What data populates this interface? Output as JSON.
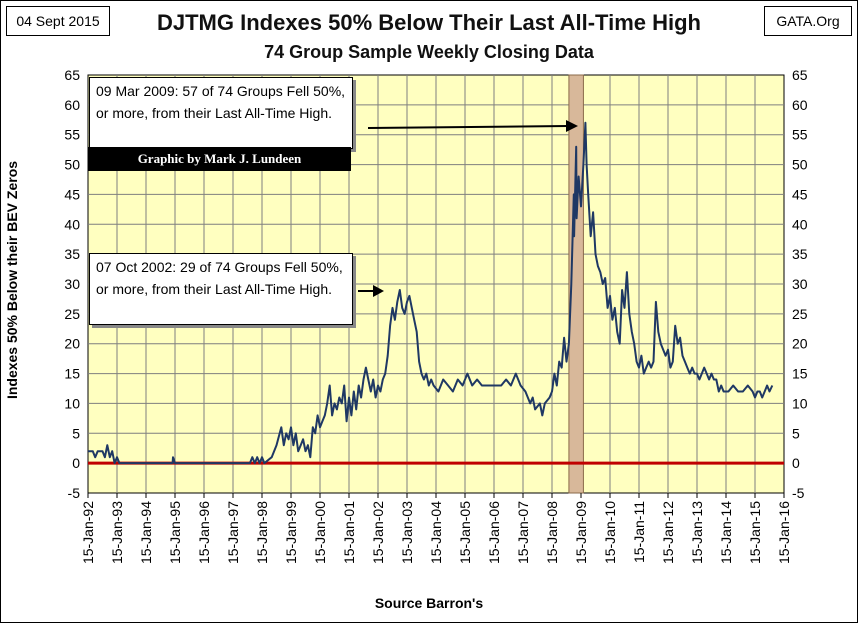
{
  "header": {
    "date_tag": "04 Sept 2015",
    "source_tag": "GATA.Org"
  },
  "colors": {
    "plot_bg": "#ffffc0",
    "line": "#1f3864",
    "zero_line": "#c00000",
    "highlight": "#d8b89a",
    "grid": "#7f7f7f"
  },
  "annotations": {
    "box_2009": "09 Mar 2009: 57 of 74 Groups Fell 50%, or more, from their Last All-Time High.",
    "box_2002": "07 Oct 2002: 29 of 74 Groups Fell 50%, or more, from their Last All-Time High.",
    "credit": "Graphic by Mark J. Lundeen"
  },
  "chart_data": {
    "type": "line",
    "title": "DJTMG Indexes 50% Below Their Last All-Time High",
    "subtitle": "74 Group Sample Weekly Closing Data",
    "ylabel": "Indexes 50% Below their BEV Zeros",
    "xlabel": "Source Barron's",
    "ylim": [
      -5,
      65
    ],
    "yticks": [
      -5,
      0,
      5,
      10,
      15,
      20,
      25,
      30,
      35,
      40,
      45,
      50,
      55,
      60,
      65
    ],
    "xticks": [
      "15-Jan-92",
      "15-Jan-93",
      "15-Jan-94",
      "15-Jan-95",
      "15-Jan-96",
      "15-Jan-97",
      "15-Jan-98",
      "15-Jan-99",
      "15-Jan-00",
      "15-Jan-01",
      "15-Jan-02",
      "15-Jan-03",
      "15-Jan-04",
      "15-Jan-05",
      "15-Jan-06",
      "15-Jan-07",
      "15-Jan-08",
      "15-Jan-09",
      "15-Jan-10",
      "15-Jan-11",
      "15-Jan-12",
      "15-Jan-13",
      "15-Jan-14",
      "15-Jan-15",
      "15-Jan-16"
    ],
    "grid": true,
    "highlight_period": [
      "2008-08",
      "2009-02"
    ],
    "reference_line": 0,
    "series": [
      {
        "points": [
          [
            "1992-01-15",
            2
          ],
          [
            "1992-03",
            2
          ],
          [
            "1992-04",
            1
          ],
          [
            "1992-05",
            2
          ],
          [
            "1992-07",
            2
          ],
          [
            "1992-08",
            1
          ],
          [
            "1992-09",
            3
          ],
          [
            "1992-10",
            1
          ],
          [
            "1992-11",
            2
          ],
          [
            "1992-12",
            0
          ],
          [
            "1993-01",
            1
          ],
          [
            "1993-02",
            0
          ],
          [
            "1993-03",
            0
          ],
          [
            "1994-12",
            0
          ],
          [
            "1994-12-20",
            1
          ],
          [
            "1995-01",
            0
          ],
          [
            "1997-08",
            0
          ],
          [
            "1997-09",
            1
          ],
          [
            "1997-10",
            0
          ],
          [
            "1997-11",
            1
          ],
          [
            "1997-12",
            0
          ],
          [
            "1998-01",
            1
          ],
          [
            "1998-02",
            0
          ],
          [
            "1998-05",
            1
          ],
          [
            "1998-07",
            3
          ],
          [
            "1998-09",
            6
          ],
          [
            "1998-10",
            3
          ],
          [
            "1998-11",
            5
          ],
          [
            "1998-12",
            4
          ],
          [
            "1999-01",
            6
          ],
          [
            "1999-02",
            3
          ],
          [
            "1999-03",
            5
          ],
          [
            "1999-04",
            2
          ],
          [
            "1999-05",
            3
          ],
          [
            "1999-06",
            4
          ],
          [
            "1999-07",
            2
          ],
          [
            "1999-08",
            3
          ],
          [
            "1999-09",
            1
          ],
          [
            "1999-10",
            6
          ],
          [
            "1999-11",
            5
          ],
          [
            "1999-12",
            8
          ],
          [
            "2000-01",
            6
          ],
          [
            "2000-02",
            7
          ],
          [
            "2000-03",
            8
          ],
          [
            "2000-04",
            10
          ],
          [
            "2000-05",
            13
          ],
          [
            "2000-06",
            8
          ],
          [
            "2000-07",
            10
          ],
          [
            "2000-08",
            9
          ],
          [
            "2000-09",
            11
          ],
          [
            "2000-10",
            10
          ],
          [
            "2000-11",
            13
          ],
          [
            "2000-12",
            7
          ],
          [
            "2001-01",
            11
          ],
          [
            "2001-02",
            8
          ],
          [
            "2001-03",
            12
          ],
          [
            "2001-04",
            9
          ],
          [
            "2001-05",
            13
          ],
          [
            "2001-06",
            11
          ],
          [
            "2001-07",
            14
          ],
          [
            "2001-08",
            16
          ],
          [
            "2001-09",
            14
          ],
          [
            "2001-10",
            12
          ],
          [
            "2001-11",
            14
          ],
          [
            "2001-12",
            11
          ],
          [
            "2002-01",
            13
          ],
          [
            "2002-02",
            12
          ],
          [
            "2002-03",
            14
          ],
          [
            "2002-04",
            15
          ],
          [
            "2002-05",
            18
          ],
          [
            "2002-06",
            23
          ],
          [
            "2002-07",
            26
          ],
          [
            "2002-08",
            24
          ],
          [
            "2002-09",
            27
          ],
          [
            "2002-10",
            29
          ],
          [
            "2002-11",
            26
          ],
          [
            "2002-12",
            25
          ],
          [
            "2003-01",
            27
          ],
          [
            "2003-02",
            28
          ],
          [
            "2003-03",
            26
          ],
          [
            "2003-04",
            24
          ],
          [
            "2003-05",
            22
          ],
          [
            "2003-06",
            17
          ],
          [
            "2003-07",
            15
          ],
          [
            "2003-08",
            14
          ],
          [
            "2003-09",
            15
          ],
          [
            "2003-10",
            13
          ],
          [
            "2003-11",
            14
          ],
          [
            "2003-12",
            13
          ],
          [
            "2004-02",
            12
          ],
          [
            "2004-04",
            14
          ],
          [
            "2004-06",
            13
          ],
          [
            "2004-08",
            12
          ],
          [
            "2004-10",
            14
          ],
          [
            "2004-12",
            13
          ],
          [
            "2005-02",
            15
          ],
          [
            "2005-04",
            13
          ],
          [
            "2005-06",
            14
          ],
          [
            "2005-08",
            13
          ],
          [
            "2005-10",
            13
          ],
          [
            "2005-12",
            13
          ],
          [
            "2006-02",
            13
          ],
          [
            "2006-04",
            13
          ],
          [
            "2006-06",
            14
          ],
          [
            "2006-08",
            13
          ],
          [
            "2006-10",
            15
          ],
          [
            "2006-12",
            13
          ],
          [
            "2007-02",
            12
          ],
          [
            "2007-04",
            10
          ],
          [
            "2007-05",
            11
          ],
          [
            "2007-06",
            9
          ],
          [
            "2007-08",
            10
          ],
          [
            "2007-09",
            8
          ],
          [
            "2007-10",
            10
          ],
          [
            "2007-12",
            11
          ],
          [
            "2008-01",
            12
          ],
          [
            "2008-02",
            15
          ],
          [
            "2008-03",
            13
          ],
          [
            "2008-04",
            17
          ],
          [
            "2008-05",
            16
          ],
          [
            "2008-06",
            21
          ],
          [
            "2008-07",
            17
          ],
          [
            "2008-08",
            20
          ],
          [
            "2008-09",
            30
          ],
          [
            "2008-10",
            45
          ],
          [
            "2008-10-20",
            38
          ],
          [
            "2008-11",
            53
          ],
          [
            "2008-11-20",
            41
          ],
          [
            "2008-12",
            48
          ],
          [
            "2009-01",
            43
          ],
          [
            "2009-02",
            50
          ],
          [
            "2009-03-09",
            57
          ],
          [
            "2009-03-25",
            50
          ],
          [
            "2009-04",
            45
          ],
          [
            "2009-05",
            38
          ],
          [
            "2009-06",
            42
          ],
          [
            "2009-07",
            35
          ],
          [
            "2009-08",
            33
          ],
          [
            "2009-09",
            32
          ],
          [
            "2009-10",
            30
          ],
          [
            "2009-11",
            31
          ],
          [
            "2009-12",
            26
          ],
          [
            "2010-01",
            28
          ],
          [
            "2010-02",
            24
          ],
          [
            "2010-03",
            26
          ],
          [
            "2010-04",
            22
          ],
          [
            "2010-05",
            20
          ],
          [
            "2010-06",
            29
          ],
          [
            "2010-07",
            26
          ],
          [
            "2010-08",
            32
          ],
          [
            "2010-09",
            25
          ],
          [
            "2010-10",
            22
          ],
          [
            "2010-11",
            20
          ],
          [
            "2010-12",
            17
          ],
          [
            "2011-01",
            16
          ],
          [
            "2011-02",
            18
          ],
          [
            "2011-03",
            15
          ],
          [
            "2011-04",
            16
          ],
          [
            "2011-05",
            17
          ],
          [
            "2011-06",
            16
          ],
          [
            "2011-07",
            17
          ],
          [
            "2011-08",
            27
          ],
          [
            "2011-09",
            22
          ],
          [
            "2011-10",
            20
          ],
          [
            "2011-11",
            19
          ],
          [
            "2011-12",
            18
          ],
          [
            "2012-01",
            19
          ],
          [
            "2012-02",
            16
          ],
          [
            "2012-03",
            17
          ],
          [
            "2012-04",
            23
          ],
          [
            "2012-05",
            20
          ],
          [
            "2012-06",
            21
          ],
          [
            "2012-07",
            18
          ],
          [
            "2012-08",
            17
          ],
          [
            "2012-09",
            16
          ],
          [
            "2012-10",
            15
          ],
          [
            "2012-11",
            16
          ],
          [
            "2012-12",
            15
          ],
          [
            "2013-01",
            15
          ],
          [
            "2013-02",
            14
          ],
          [
            "2013-03",
            15
          ],
          [
            "2013-04",
            16
          ],
          [
            "2013-05",
            15
          ],
          [
            "2013-06",
            14
          ],
          [
            "2013-07",
            15
          ],
          [
            "2013-08",
            14
          ],
          [
            "2013-09",
            14
          ],
          [
            "2013-10",
            12
          ],
          [
            "2013-11",
            13
          ],
          [
            "2013-12",
            12
          ],
          [
            "2014-02",
            12
          ],
          [
            "2014-04",
            13
          ],
          [
            "2014-06",
            12
          ],
          [
            "2014-08",
            12
          ],
          [
            "2014-10",
            13
          ],
          [
            "2014-12",
            12
          ],
          [
            "2015-01",
            11
          ],
          [
            "2015-02",
            12
          ],
          [
            "2015-03",
            12
          ],
          [
            "2015-04",
            11
          ],
          [
            "2015-05",
            12
          ],
          [
            "2015-06",
            13
          ],
          [
            "2015-07",
            12
          ],
          [
            "2015-08-20",
            13
          ]
        ]
      }
    ]
  }
}
